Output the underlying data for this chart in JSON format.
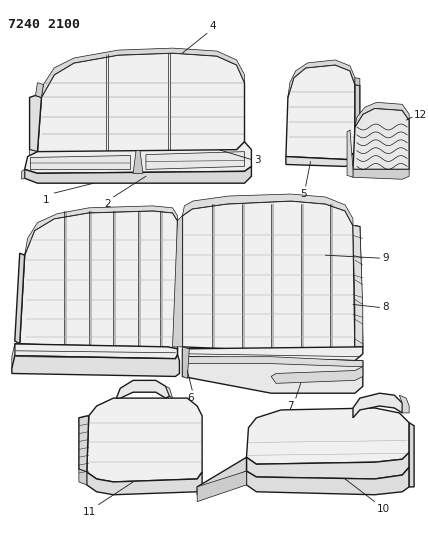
{
  "title_code": "7240 2100",
  "bg": "#ffffff",
  "lc": "#1a1a1a",
  "lw_main": 1.0,
  "lw_thin": 0.5,
  "lw_detail": 0.35,
  "label_fs": 7.5,
  "title_fs": 9.5
}
